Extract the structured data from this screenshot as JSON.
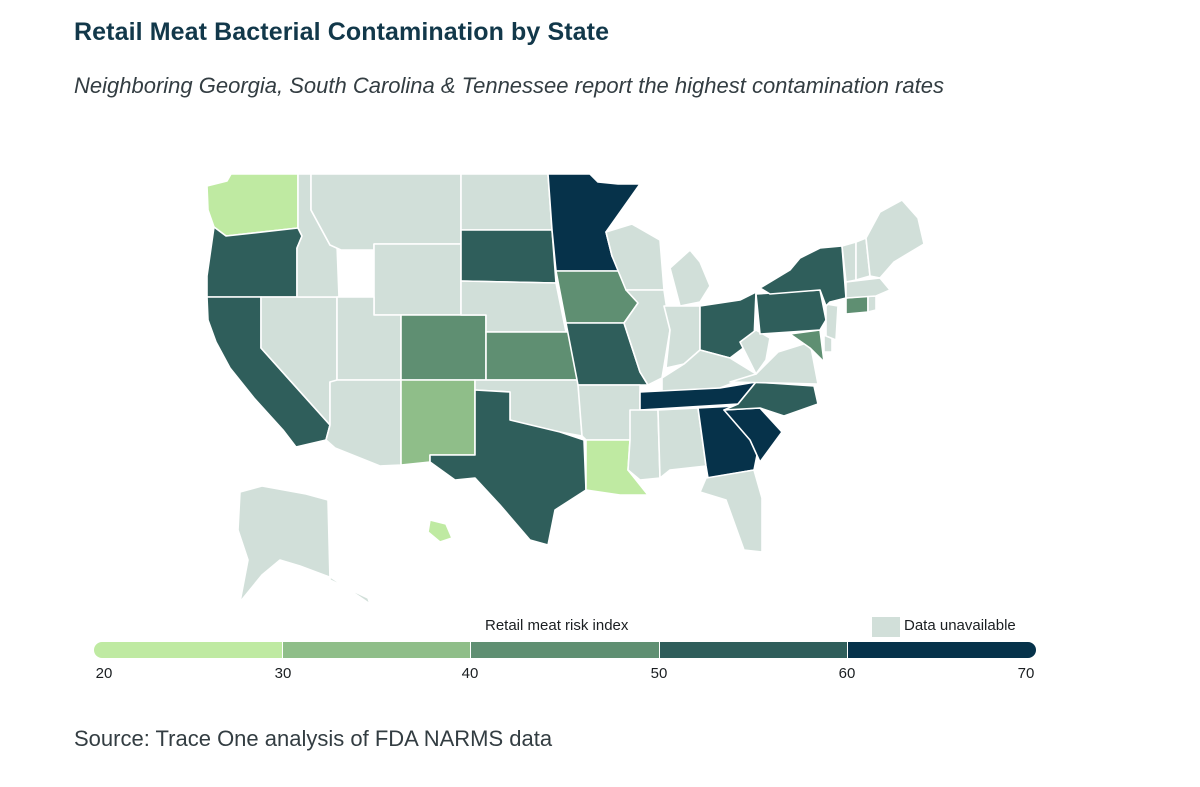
{
  "title": "Retail Meat Bacterial Contamination by State",
  "subtitle": "Neighboring Georgia, South Carolina & Tennessee report the highest contamination rates",
  "source": "Source: Trace One analysis of FDA NARMS data",
  "colors": {
    "unavailable": "#d1dfd9",
    "bins": [
      "#bfeaa2",
      "#8fbe89",
      "#5f8f72",
      "#2f5e5b",
      "#06324a"
    ]
  },
  "legend": {
    "title": "Retail meat risk index",
    "unavailable_label": "Data unavailable",
    "ticks": [
      "20",
      "30",
      "40",
      "50",
      "60",
      "70"
    ],
    "bins": [
      [
        20,
        30
      ],
      [
        30,
        40
      ],
      [
        40,
        50
      ],
      [
        50,
        60
      ],
      [
        60,
        70
      ]
    ]
  },
  "map_data": {
    "type": "choropleth",
    "region": "United States",
    "value_field": "risk index bin",
    "states": {
      "WA": 0,
      "OR": 3,
      "CA": 3,
      "NV": null,
      "ID": null,
      "MT": null,
      "WY": null,
      "UT": null,
      "AZ": null,
      "CO": 2,
      "NM": 1,
      "ND": null,
      "SD": 3,
      "NE": null,
      "KS": 2,
      "OK": null,
      "TX": 3,
      "MN": 4,
      "IA": 2,
      "MO": 3,
      "AR": null,
      "LA": 0,
      "WI": null,
      "IL": null,
      "MI": null,
      "IN": null,
      "OH": 3,
      "KY": null,
      "TN": 4,
      "MS": null,
      "AL": null,
      "GA": 4,
      "FL": null,
      "SC": 4,
      "NC": 3,
      "VA": null,
      "WV": null,
      "MD": 2,
      "DE": null,
      "PA": 3,
      "NJ": null,
      "NY": 3,
      "CT": 2,
      "RI": null,
      "MA": null,
      "VT": null,
      "NH": null,
      "ME": null,
      "AK": null,
      "HI": 0
    }
  }
}
